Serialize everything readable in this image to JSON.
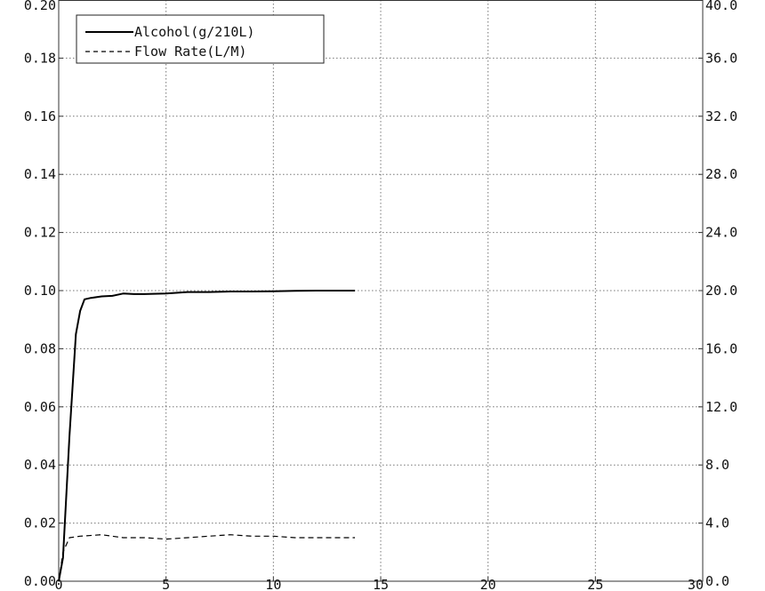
{
  "chart_data": {
    "type": "line",
    "title": "",
    "xlabel": "",
    "ylabel": "",
    "y2label": "",
    "xlim": [
      0,
      30
    ],
    "ylim": [
      0,
      0.2
    ],
    "y2lim": [
      0,
      40
    ],
    "grid": true,
    "legend_position": "top-left",
    "x_ticks": [
      "0",
      "5",
      "10",
      "15",
      "20",
      "25",
      "30"
    ],
    "y_ticks": [
      "0.00",
      "0.02",
      "0.04",
      "0.06",
      "0.08",
      "0.10",
      "0.12",
      "0.14",
      "0.16",
      "0.18",
      "0.20"
    ],
    "y2_ticks": [
      "0.0",
      "4.0",
      "8.0",
      "12.0",
      "16.0",
      "20.0",
      "24.0",
      "28.0",
      "32.0",
      "36.0",
      "40.0"
    ],
    "series": [
      {
        "name": "Alcohol(g/210L)",
        "axis": "left",
        "style": "solid",
        "color": "#000000",
        "x": [
          0,
          0.2,
          0.5,
          0.8,
          1.0,
          1.2,
          1.5,
          2.0,
          2.5,
          3.0,
          3.5,
          4.0,
          5.0,
          6.0,
          7.0,
          8.0,
          9.0,
          10.0,
          11.0,
          12.0,
          13.0,
          13.8
        ],
        "y": [
          0.0,
          0.008,
          0.05,
          0.085,
          0.093,
          0.097,
          0.0975,
          0.098,
          0.0982,
          0.099,
          0.0988,
          0.0988,
          0.099,
          0.0995,
          0.0995,
          0.0997,
          0.0997,
          0.0998,
          0.0999,
          0.1,
          0.1,
          0.1
        ]
      },
      {
        "name": "Flow Rate(L/M)",
        "axis": "right",
        "style": "dashed",
        "color": "#000000",
        "x": [
          0,
          0.2,
          0.5,
          1.0,
          2.0,
          3.0,
          4.0,
          5.0,
          6.0,
          7.0,
          8.0,
          9.0,
          10.0,
          11.0,
          12.0,
          13.0,
          13.8
        ],
        "y": [
          0.0,
          2.0,
          3.0,
          3.1,
          3.2,
          3.0,
          3.0,
          2.9,
          3.0,
          3.1,
          3.2,
          3.1,
          3.1,
          3.0,
          3.0,
          3.0,
          3.0
        ]
      }
    ]
  }
}
